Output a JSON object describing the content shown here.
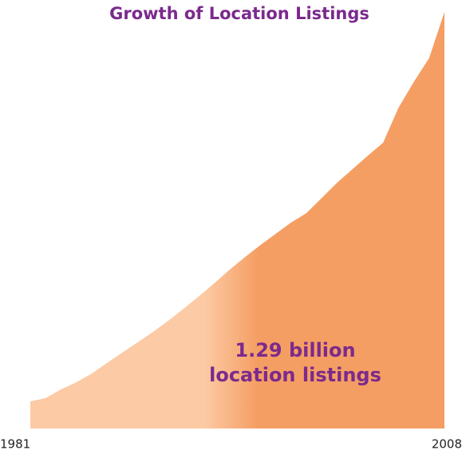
{
  "chart_data": {
    "type": "area",
    "title": "Growth of Location Listings",
    "x": [
      1981,
      1982,
      1983,
      1984,
      1985,
      1986,
      1987,
      1988,
      1989,
      1990,
      1991,
      1992,
      1993,
      1994,
      1995,
      1996,
      1997,
      1998,
      1999,
      2000,
      2001,
      2002,
      2003,
      2004,
      2005,
      2006,
      2007,
      2008
    ],
    "values": [
      0.084,
      0.094,
      0.121,
      0.143,
      0.17,
      0.203,
      0.235,
      0.267,
      0.299,
      0.334,
      0.371,
      0.41,
      0.45,
      0.492,
      0.531,
      0.568,
      0.603,
      0.638,
      0.667,
      0.714,
      0.761,
      0.803,
      0.845,
      0.885,
      0.993,
      1.073,
      1.147,
      1.29
    ],
    "xlim": [
      1981,
      2008
    ],
    "xticks": [
      1981,
      2008
    ],
    "ylim": [
      0,
      1.29
    ],
    "annotation": [
      "1.29 billion",
      "location listings"
    ],
    "gradient": [
      "#fccaa4",
      "#f59e63"
    ]
  }
}
